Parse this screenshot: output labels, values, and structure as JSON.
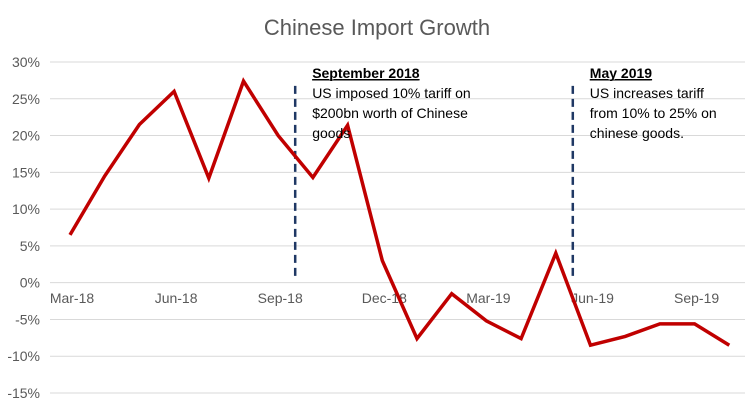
{
  "chart_data": {
    "type": "line",
    "title": "Chinese Import Growth",
    "xlabel": "",
    "ylabel": "",
    "ylim": [
      -15,
      30
    ],
    "y_ticks": [
      30,
      25,
      20,
      15,
      10,
      5,
      0,
      -5,
      -10,
      -15
    ],
    "y_tick_labels": [
      "30%",
      "25%",
      "20%",
      "15%",
      "10%",
      "5%",
      "0%",
      "-5%",
      "-10%",
      "-15%"
    ],
    "x": [
      "Mar-18",
      "Apr-18",
      "May-18",
      "Jun-18",
      "Jul-18",
      "Aug-18",
      "Sep-18",
      "Oct-18",
      "Nov-18",
      "Dec-18",
      "Jan-19",
      "Feb-19",
      "Mar-19",
      "Apr-19",
      "May-19",
      "Jun-19",
      "Jul-19",
      "Aug-19",
      "Sep-19",
      "Oct-19"
    ],
    "x_tick_labels": [
      "Mar-18",
      "Jun-18",
      "Sep-18",
      "Dec-18",
      "Mar-19",
      "Jun-19",
      "Sep-19"
    ],
    "grid": true,
    "series": [
      {
        "name": "",
        "color": "#c00000",
        "values": [
          6.5,
          14.5,
          21.5,
          26,
          14.2,
          27.4,
          20,
          14.3,
          21.4,
          3,
          -7.6,
          -1.5,
          -5.2,
          -7.6,
          4,
          -8.5,
          -7.3,
          -5.6,
          -5.6,
          -8.5
        ]
      }
    ],
    "annotations": [
      {
        "heading": "September 2018",
        "lines": [
          "US imposed 10% tariff on",
          "$200bn worth of Chinese",
          "goods"
        ],
        "marker_x": "Sep-18",
        "line_color": "#1f3864"
      },
      {
        "heading": "May 2019",
        "lines": [
          "US increases tariff",
          "from 10% to 25% on",
          "chinese goods."
        ],
        "marker_x": "May-19",
        "line_color": "#1f3864"
      }
    ]
  }
}
